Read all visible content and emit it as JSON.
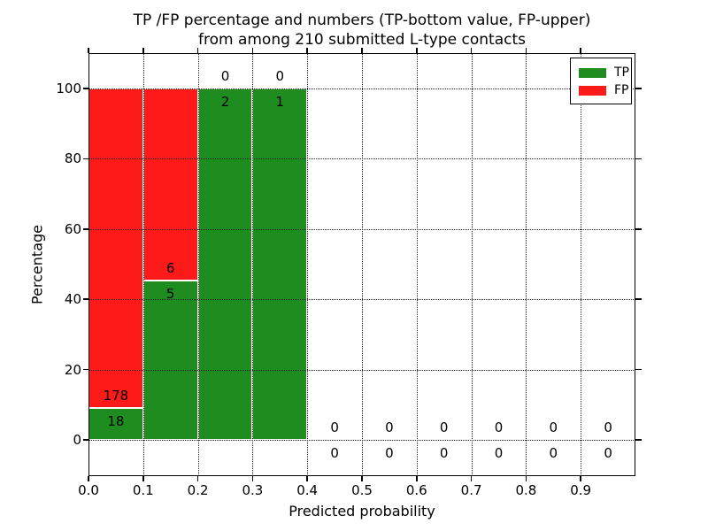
{
  "figure": {
    "title_line1": "TP /FP percentage and numbers (TP-bottom value, FP-upper)",
    "title_line2": "from among 210 submitted L-type contacts",
    "xlabel": "Predicted probability",
    "ylabel": "Percentage",
    "background_color": "#ffffff",
    "grid_color": "#222222"
  },
  "legend": {
    "position": "upper right",
    "items": [
      {
        "label": "TP",
        "color": "#1f8c1f"
      },
      {
        "label": "FP",
        "color": "#ff1a1a"
      }
    ]
  },
  "chart_data": {
    "type": "bar",
    "stacked": true,
    "title": "TP /FP percentage and numbers (TP-bottom value, FP-upper) from among 210 submitted L-type contacts",
    "xlabel": "Predicted probability",
    "ylabel": "Percentage",
    "xlim": [
      0.0,
      1.0
    ],
    "ylim": [
      -10.33,
      110.07
    ],
    "grid": true,
    "legend_position": "upper right",
    "bin_width": 0.1,
    "total_contacts": 210,
    "x_tick_values": [
      0.0,
      0.1,
      0.2,
      0.3,
      0.4,
      0.5,
      0.6,
      0.7,
      0.8,
      0.9
    ],
    "x_tick_labels": [
      "0.0",
      "0.1",
      "0.2",
      "0.3",
      "0.4",
      "0.5",
      "0.6",
      "0.7",
      "0.8",
      "0.9"
    ],
    "y_tick_values": [
      0,
      20,
      40,
      60,
      80,
      100
    ],
    "y_tick_labels": [
      "0",
      "20",
      "40",
      "60",
      "80",
      "100"
    ],
    "series": [
      {
        "name": "TP",
        "color": "#1f8c1f",
        "counts": [
          18,
          5,
          2,
          1,
          0,
          0,
          0,
          0,
          0,
          0
        ]
      },
      {
        "name": "FP",
        "color": "#ff1a1a",
        "counts": [
          178,
          6,
          0,
          0,
          0,
          0,
          0,
          0,
          0,
          0
        ]
      }
    ],
    "bins": [
      {
        "x_range": [
          0.0,
          0.1
        ],
        "tp": 18,
        "fp": 178,
        "tp_pct": 9.18,
        "fp_pct": 90.82
      },
      {
        "x_range": [
          0.1,
          0.2
        ],
        "tp": 5,
        "fp": 6,
        "tp_pct": 45.45,
        "fp_pct": 54.55
      },
      {
        "x_range": [
          0.2,
          0.3
        ],
        "tp": 2,
        "fp": 0,
        "tp_pct": 100,
        "fp_pct": 0
      },
      {
        "x_range": [
          0.3,
          0.4
        ],
        "tp": 1,
        "fp": 0,
        "tp_pct": 100,
        "fp_pct": 0
      },
      {
        "x_range": [
          0.4,
          0.5
        ],
        "tp": 0,
        "fp": 0,
        "tp_pct": 0,
        "fp_pct": 0
      },
      {
        "x_range": [
          0.5,
          0.6
        ],
        "tp": 0,
        "fp": 0,
        "tp_pct": 0,
        "fp_pct": 0
      },
      {
        "x_range": [
          0.6,
          0.7
        ],
        "tp": 0,
        "fp": 0,
        "tp_pct": 0,
        "fp_pct": 0
      },
      {
        "x_range": [
          0.7,
          0.8
        ],
        "tp": 0,
        "fp": 0,
        "tp_pct": 0,
        "fp_pct": 0
      },
      {
        "x_range": [
          0.8,
          0.9
        ],
        "tp": 0,
        "fp": 0,
        "tp_pct": 0,
        "fp_pct": 0
      },
      {
        "x_range": [
          0.9,
          1.0
        ],
        "tp": 0,
        "fp": 0,
        "tp_pct": 0,
        "fp_pct": 0
      }
    ]
  }
}
